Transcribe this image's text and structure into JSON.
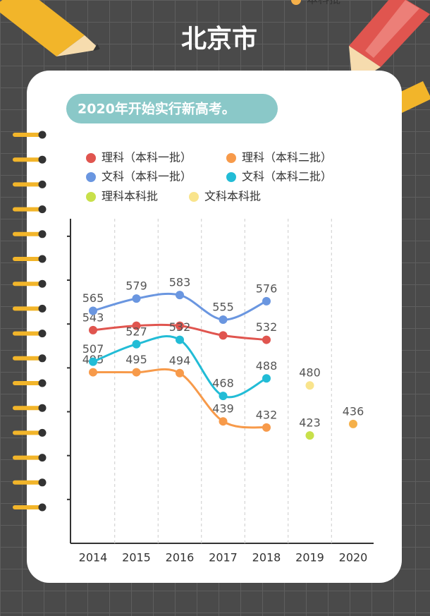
{
  "header": {
    "title": "北京市"
  },
  "chart_data": {
    "type": "line",
    "subtitle": "2020年开始实行新高考。",
    "categories": [
      "2014",
      "2015",
      "2016",
      "2017",
      "2018",
      "2019",
      "2020"
    ],
    "series": [
      {
        "name": "理科（本科一批）",
        "color": "#e0554f",
        "values": [
          543,
          548,
          548,
          537,
          532,
          null,
          null
        ],
        "labeled": [
          true,
          false,
          false,
          false,
          true,
          false,
          false
        ]
      },
      {
        "name": "理科（本科二批）",
        "color": "#f79a4a",
        "values": [
          495,
          495,
          494,
          439,
          432,
          null,
          null
        ],
        "labeled": [
          true,
          true,
          true,
          true,
          true,
          false,
          false
        ]
      },
      {
        "name": "文科（本科一批）",
        "color": "#6a96e0",
        "values": [
          565,
          579,
          583,
          555,
          576,
          null,
          null
        ],
        "labeled": [
          true,
          true,
          true,
          true,
          true,
          false,
          false
        ]
      },
      {
        "name": "文科（本科二批）",
        "color": "#22bcd6",
        "values": [
          507,
          527,
          532,
          468,
          488,
          null,
          null
        ],
        "labeled": [
          true,
          true,
          true,
          true,
          true,
          false,
          false
        ]
      },
      {
        "name": "理科本科批",
        "color": "#c8e04a",
        "values": [
          null,
          null,
          null,
          null,
          null,
          423,
          null
        ],
        "labeled": [
          false,
          false,
          false,
          false,
          false,
          true,
          false
        ]
      },
      {
        "name": "文科本科批",
        "color": "#f9e48c",
        "values": [
          null,
          null,
          null,
          null,
          null,
          480,
          null
        ],
        "labeled": [
          false,
          false,
          false,
          false,
          false,
          true,
          false
        ]
      },
      {
        "name": "本科批",
        "color": "#f5b04a",
        "values": [
          null,
          null,
          null,
          null,
          null,
          null,
          436
        ],
        "labeled": [
          false,
          false,
          false,
          false,
          false,
          false,
          true
        ]
      }
    ],
    "ylim": [
      300,
      670
    ],
    "yticks": [
      350,
      400,
      450,
      500,
      550,
      600,
      650
    ]
  }
}
